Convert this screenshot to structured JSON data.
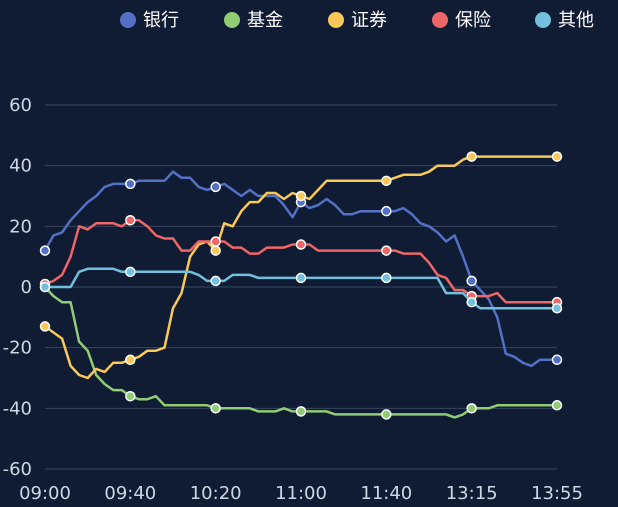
{
  "chart_data": {
    "type": "line",
    "legend_position": "top-right",
    "grid": true,
    "ylim": [
      -60,
      60
    ],
    "y_ticks": [
      60,
      40,
      20,
      0,
      -20,
      -40,
      -60
    ],
    "x_tick_labels": [
      "09:00",
      "09:40",
      "10:20",
      "11:00",
      "11:40",
      "13:15",
      "13:55"
    ],
    "x_count": 61,
    "colors": {
      "background": "#0f1c33",
      "grid": "#3a4660",
      "text": "#cfd6e4"
    },
    "series": [
      {
        "name": "银行",
        "color": "#5470c6",
        "marker_points": [
          0,
          10,
          20,
          30,
          40,
          50,
          60
        ],
        "values": [
          12,
          17,
          18,
          22,
          25,
          28,
          30,
          33,
          34,
          34,
          34,
          35,
          35,
          35,
          35,
          38,
          36,
          36,
          33,
          32,
          33,
          34,
          32,
          30,
          32,
          30,
          30,
          30,
          27,
          23,
          28,
          26,
          27,
          29,
          27,
          24,
          24,
          25,
          25,
          25,
          25,
          25,
          26,
          24,
          21,
          20,
          18,
          15,
          17,
          10,
          2,
          -1,
          -4,
          -10,
          -22,
          -23,
          -25,
          -26,
          -24,
          -24,
          -24
        ]
      },
      {
        "name": "基金",
        "color": "#91cc75",
        "marker_points": [
          0,
          10,
          20,
          30,
          40,
          50,
          60
        ],
        "values": [
          0,
          -3,
          -5,
          -5,
          -18,
          -21,
          -29,
          -32,
          -34,
          -34,
          -36,
          -37,
          -37,
          -36,
          -39,
          -39,
          -39,
          -39,
          -39,
          -39,
          -40,
          -40,
          -40,
          -40,
          -40,
          -41,
          -41,
          -41,
          -40,
          -41,
          -41,
          -41,
          -41,
          -41,
          -42,
          -42,
          -42,
          -42,
          -42,
          -42,
          -42,
          -42,
          -42,
          -42,
          -42,
          -42,
          -42,
          -42,
          -43,
          -42,
          -40,
          -40,
          -40,
          -39,
          -39,
          -39,
          -39,
          -39,
          -39,
          -39,
          -39
        ]
      },
      {
        "name": "证券",
        "color": "#fac858",
        "marker_points": [
          0,
          10,
          20,
          30,
          40,
          50,
          60
        ],
        "values": [
          -13,
          -15,
          -17,
          -26,
          -29,
          -30,
          -27,
          -28,
          -25,
          -25,
          -24,
          -23,
          -21,
          -21,
          -20,
          -7,
          -2,
          10,
          14,
          15,
          12,
          21,
          20,
          25,
          28,
          28,
          31,
          31,
          29,
          31,
          30,
          29,
          32,
          35,
          35,
          35,
          35,
          35,
          35,
          35,
          35,
          36,
          37,
          37,
          37,
          38,
          40,
          40,
          40,
          42,
          43,
          43,
          43,
          43,
          43,
          43,
          43,
          43,
          43,
          43,
          43
        ]
      },
      {
        "name": "保险",
        "color": "#ee6666",
        "marker_points": [
          0,
          10,
          20,
          30,
          40,
          50,
          60
        ],
        "values": [
          1,
          2,
          4,
          10,
          20,
          19,
          21,
          21,
          21,
          20,
          22,
          22,
          20,
          17,
          16,
          16,
          12,
          12,
          15,
          15,
          15,
          15,
          13,
          13,
          11,
          11,
          13,
          13,
          13,
          14,
          14,
          14,
          12,
          12,
          12,
          12,
          12,
          12,
          12,
          12,
          12,
          12,
          11,
          11,
          11,
          8,
          4,
          3,
          -1,
          -1,
          -3,
          -3,
          -3,
          -2,
          -5,
          -5,
          -5,
          -5,
          -5,
          -5,
          -5
        ]
      },
      {
        "name": "其他",
        "color": "#73c0de",
        "marker_points": [
          0,
          10,
          20,
          30,
          40,
          50,
          60
        ],
        "values": [
          0,
          0,
          0,
          0,
          5,
          6,
          6,
          6,
          6,
          5,
          5,
          5,
          5,
          5,
          5,
          5,
          5,
          5,
          4,
          2,
          2,
          2,
          4,
          4,
          4,
          3,
          3,
          3,
          3,
          3,
          3,
          3,
          3,
          3,
          3,
          3,
          3,
          3,
          3,
          3,
          3,
          3,
          3,
          3,
          3,
          3,
          3,
          -2,
          -2,
          -2,
          -5,
          -7,
          -7,
          -7,
          -7,
          -7,
          -7,
          -7,
          -7,
          -7,
          -7
        ]
      }
    ]
  }
}
